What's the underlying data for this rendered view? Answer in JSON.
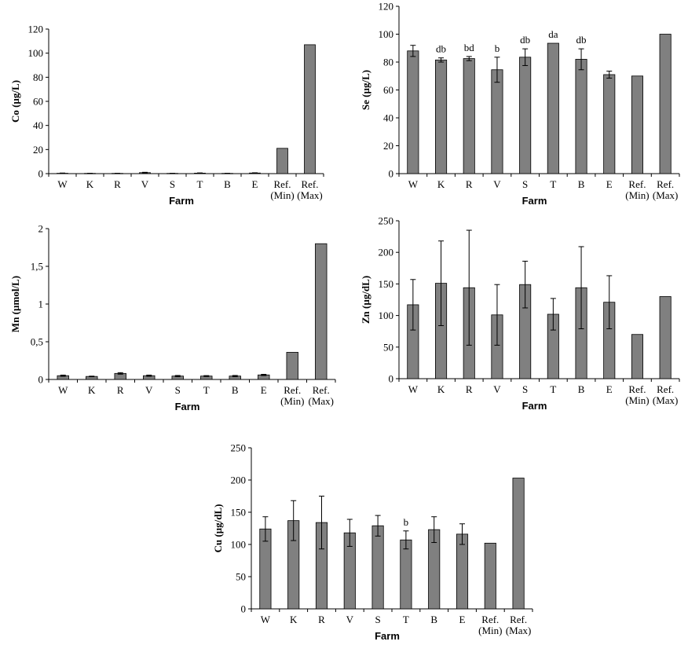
{
  "chart_data": [
    {
      "type": "bar",
      "categories": [
        "W",
        "K",
        "R",
        "V",
        "S",
        "T",
        "B",
        "E",
        "Ref. (Min)",
        "Ref. (Max)"
      ],
      "values": [
        0.3,
        0.2,
        0.2,
        0.8,
        0.2,
        0.4,
        0.2,
        0.5,
        21,
        107
      ],
      "errors": [
        0.2,
        0.1,
        0.1,
        0.3,
        0.1,
        0.2,
        0.1,
        0.2,
        0,
        0
      ],
      "annotations": [
        "",
        "",
        "",
        "",
        "",
        "",
        "",
        "",
        "",
        ""
      ],
      "ylabel": "Co (µg/L)",
      "xlabel": "Farm",
      "ylim": [
        0,
        120
      ],
      "yticks": [
        0,
        20,
        40,
        60,
        80,
        100,
        120
      ],
      "ytick_labels": [
        "0",
        "20",
        "40",
        "60",
        "80",
        "100",
        "120"
      ]
    },
    {
      "type": "bar",
      "categories": [
        "W",
        "K",
        "R",
        "V",
        "S",
        "T",
        "B",
        "E",
        "Ref. (Min)",
        "Ref. (Max)"
      ],
      "values": [
        88,
        81.5,
        82.5,
        74.5,
        83.5,
        93.5,
        82,
        71,
        70,
        100
      ],
      "errors": [
        4,
        1.5,
        1.5,
        9,
        6,
        0,
        7.5,
        2.5,
        0,
        0
      ],
      "annotations": [
        "",
        "db",
        "bd",
        "b",
        "db",
        "da",
        "db",
        "",
        "",
        ""
      ],
      "ylabel": "Se (µg/L)",
      "xlabel": "Farm",
      "ylim": [
        0,
        120
      ],
      "yticks": [
        0,
        20,
        40,
        60,
        80,
        100,
        120
      ],
      "ytick_labels": [
        "0",
        "20",
        "40",
        "60",
        "80",
        "100",
        "120"
      ]
    },
    {
      "type": "bar",
      "categories": [
        "W",
        "K",
        "R",
        "V",
        "S",
        "T",
        "B",
        "E",
        "Ref. (Min)",
        "Ref. (Max)"
      ],
      "values": [
        0.05,
        0.04,
        0.08,
        0.05,
        0.045,
        0.045,
        0.045,
        0.06,
        0.36,
        1.8
      ],
      "errors": [
        0.008,
        0.004,
        0.01,
        0.008,
        0.008,
        0.006,
        0.008,
        0.008,
        0,
        0
      ],
      "annotations": [
        "",
        "",
        "",
        "",
        "",
        "",
        "",
        "",
        "",
        ""
      ],
      "ylabel": "Mn (µmol/L)",
      "xlabel": "Farm",
      "ylim": [
        0,
        2
      ],
      "yticks": [
        0,
        0.5,
        1,
        1.5,
        2
      ],
      "ytick_labels": [
        "0",
        "0,5",
        "1",
        "1,5",
        "2"
      ]
    },
    {
      "type": "bar",
      "categories": [
        "W",
        "K",
        "R",
        "V",
        "S",
        "T",
        "B",
        "E",
        "Ref. (Min)",
        "Ref. (Max)"
      ],
      "values": [
        117,
        151,
        144,
        101,
        149,
        102,
        144,
        121,
        70,
        130
      ],
      "errors": [
        40,
        67,
        91,
        48,
        37,
        25,
        65,
        42,
        0,
        0
      ],
      "annotations": [
        "",
        "",
        "",
        "",
        "",
        "",
        "",
        "",
        "",
        ""
      ],
      "ylabel": "Zn (µg/dL)",
      "xlabel": "Farm",
      "ylim": [
        0,
        250
      ],
      "yticks": [
        0,
        50,
        100,
        150,
        200,
        250
      ],
      "ytick_labels": [
        "0",
        "50",
        "100",
        "150",
        "200",
        "250"
      ]
    },
    {
      "type": "bar",
      "categories": [
        "W",
        "K",
        "R",
        "V",
        "S",
        "T",
        "B",
        "E",
        "Ref. (Min)",
        "Ref. (Max)"
      ],
      "values": [
        124,
        137,
        134,
        118,
        129,
        107,
        123,
        116,
        102,
        203
      ],
      "errors": [
        19,
        31,
        41,
        21,
        16,
        14,
        20,
        16,
        0,
        0
      ],
      "annotations": [
        "",
        "",
        "",
        "",
        "",
        "b",
        "",
        "",
        "",
        ""
      ],
      "ylabel": "Cu (µg/dL)",
      "xlabel": "Farm",
      "ylim": [
        0,
        250
      ],
      "yticks": [
        0,
        50,
        100,
        150,
        200,
        250
      ],
      "ytick_labels": [
        "0",
        "50",
        "100",
        "150",
        "200",
        "250"
      ]
    }
  ],
  "colors": {
    "bar_fill": "#808080",
    "bar_stroke": "#000000",
    "axis": "#000000"
  }
}
